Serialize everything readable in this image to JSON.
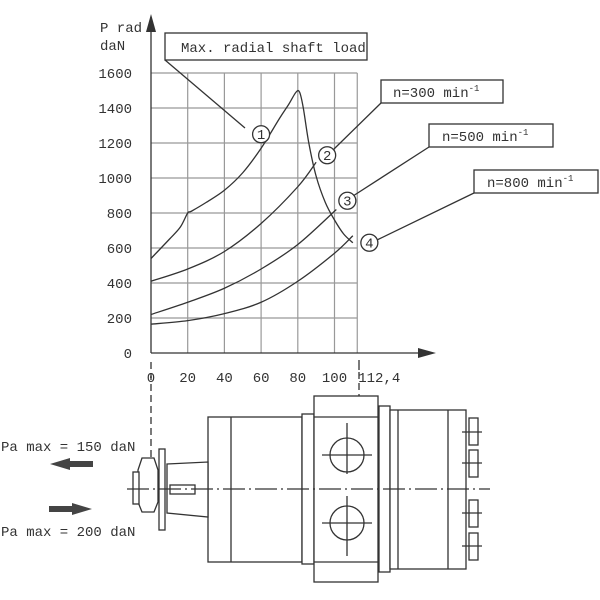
{
  "chart_data": {
    "type": "line",
    "ylabel": "P rad",
    "yunit": "daN",
    "xlim": [
      0,
      112.4
    ],
    "ylim": [
      0,
      1600
    ],
    "grid": true,
    "x_ticks": [
      "0",
      "20",
      "40",
      "60",
      "80",
      "100",
      "112,4"
    ],
    "y_ticks": [
      "0",
      "200",
      "400",
      "600",
      "800",
      "1000",
      "1200",
      "1400",
      "1600"
    ],
    "series": [
      {
        "name": "Max. radial shaft load",
        "marker": "1",
        "x": [
          0,
          10,
          16,
          20,
          22,
          30,
          40,
          50,
          60,
          70,
          75,
          79,
          81,
          83,
          86,
          90,
          95,
          100,
          105,
          110
        ],
        "y": [
          540,
          650,
          720,
          800,
          810,
          860,
          930,
          1030,
          1170,
          1340,
          1420,
          1490,
          1490,
          1400,
          1200,
          1010,
          860,
          760,
          680,
          630
        ]
      },
      {
        "name": "n=300 min-1",
        "label_main": "n=300 min",
        "label_sup": "-1",
        "marker": "2",
        "x": [
          0,
          20,
          40,
          60,
          80,
          90
        ],
        "y": [
          410,
          480,
          580,
          740,
          950,
          1090
        ]
      },
      {
        "name": "n=500 min-1",
        "label_main": "n=500 min",
        "label_sup": "-1",
        "marker": "3",
        "x": [
          0,
          20,
          40,
          60,
          80,
          101
        ],
        "y": [
          220,
          290,
          370,
          480,
          620,
          820
        ]
      },
      {
        "name": "n=800 min-1",
        "label_main": "n=800 min",
        "label_sup": "-1",
        "marker": "4",
        "x": [
          0,
          20,
          40,
          60,
          80,
          100,
          110
        ],
        "y": [
          165,
          185,
          225,
          290,
          410,
          570,
          670
        ]
      }
    ]
  },
  "drawing": {
    "axial_load_out": "Pa max = 150 daN",
    "axial_load_in": "Pa max = 200 daN"
  }
}
